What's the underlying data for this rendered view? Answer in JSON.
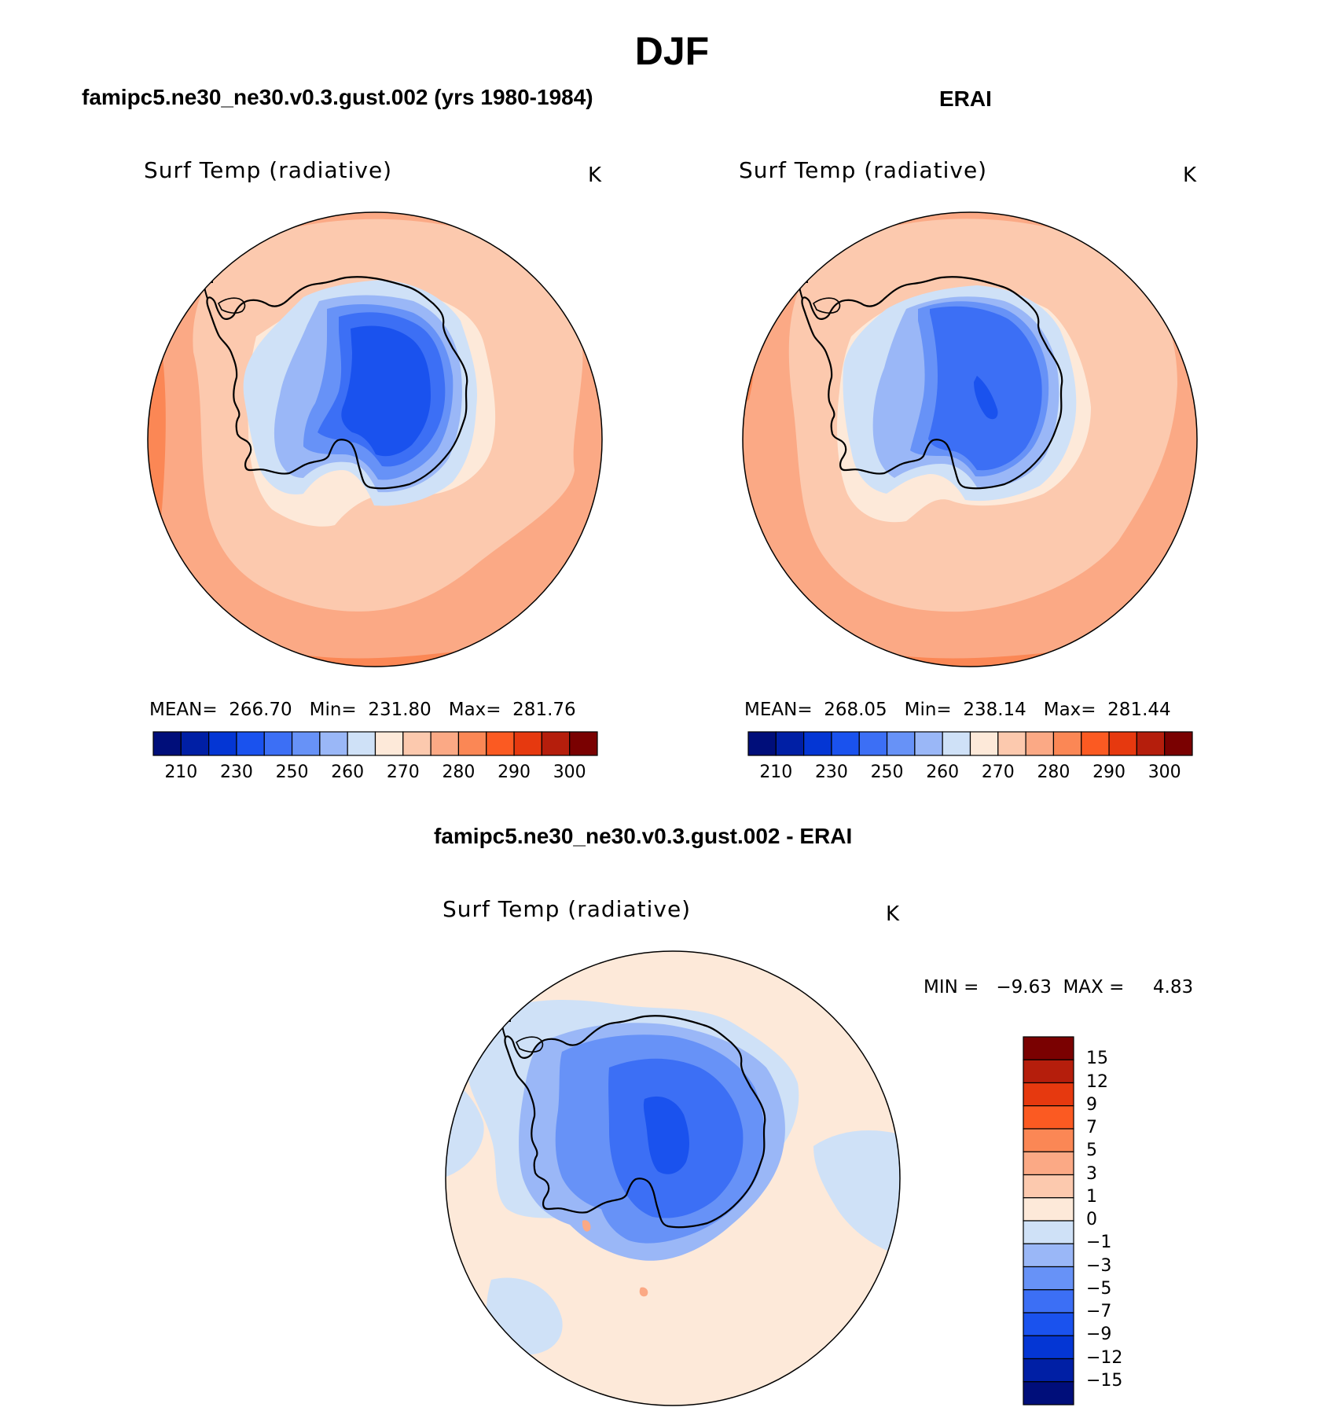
{
  "figure": {
    "title": "DJF"
  },
  "panels": [
    {
      "title": "famipc5.ne30_ne30.v0.3.gust.002 (yrs 1980-1984)",
      "variable": "Surf Temp (radiative)",
      "units": "K",
      "stats_text": "MEAN=  266.70   Min=  231.80   Max=  281.76",
      "stats": {
        "mean": 266.7,
        "min": 231.8,
        "max": 281.76
      }
    },
    {
      "title": "ERAI",
      "variable": "Surf Temp (radiative)",
      "units": "K",
      "stats_text": "MEAN=  268.05   Min=  238.14   Max=  281.44",
      "stats": {
        "mean": 268.05,
        "min": 238.14,
        "max": 281.44
      }
    },
    {
      "title": "famipc5.ne30_ne30.v0.3.gust.002 - ERAI",
      "variable": "Surf Temp (radiative)",
      "units": "K",
      "stats_text": "MIN =   −9.63  MAX =     4.83",
      "stats": {
        "min": -9.63,
        "max": 4.83
      }
    }
  ],
  "colorbars": {
    "absolute": {
      "tick_labels": [
        "210",
        "230",
        "250",
        "260",
        "270",
        "280",
        "290",
        "300"
      ],
      "colors": [
        "#000e7a",
        "#001fa5",
        "#0436d4",
        "#1a52ee",
        "#3c6ff5",
        "#6792f7",
        "#9ab7f7",
        "#cfe1f7",
        "#fde9d9",
        "#fcc9ae",
        "#fba985",
        "#fb8755",
        "#fb5a22",
        "#e6390f",
        "#b51e0c",
        "#7a0101"
      ]
    },
    "difference": {
      "tick_labels": [
        "15",
        "12",
        "9",
        "7",
        "5",
        "3",
        "1",
        "0",
        "−1",
        "−3",
        "−5",
        "−7",
        "−9",
        "−12",
        "−15"
      ],
      "colors": [
        "#7a0101",
        "#b51e0c",
        "#e6390f",
        "#fb5a22",
        "#fb8755",
        "#fba985",
        "#fcc9ae",
        "#fde9d9",
        "#cfe1f7",
        "#9ab7f7",
        "#6792f7",
        "#3c6ff5",
        "#1a52ee",
        "#0436d4",
        "#001fa5",
        "#000e7a"
      ]
    }
  }
}
